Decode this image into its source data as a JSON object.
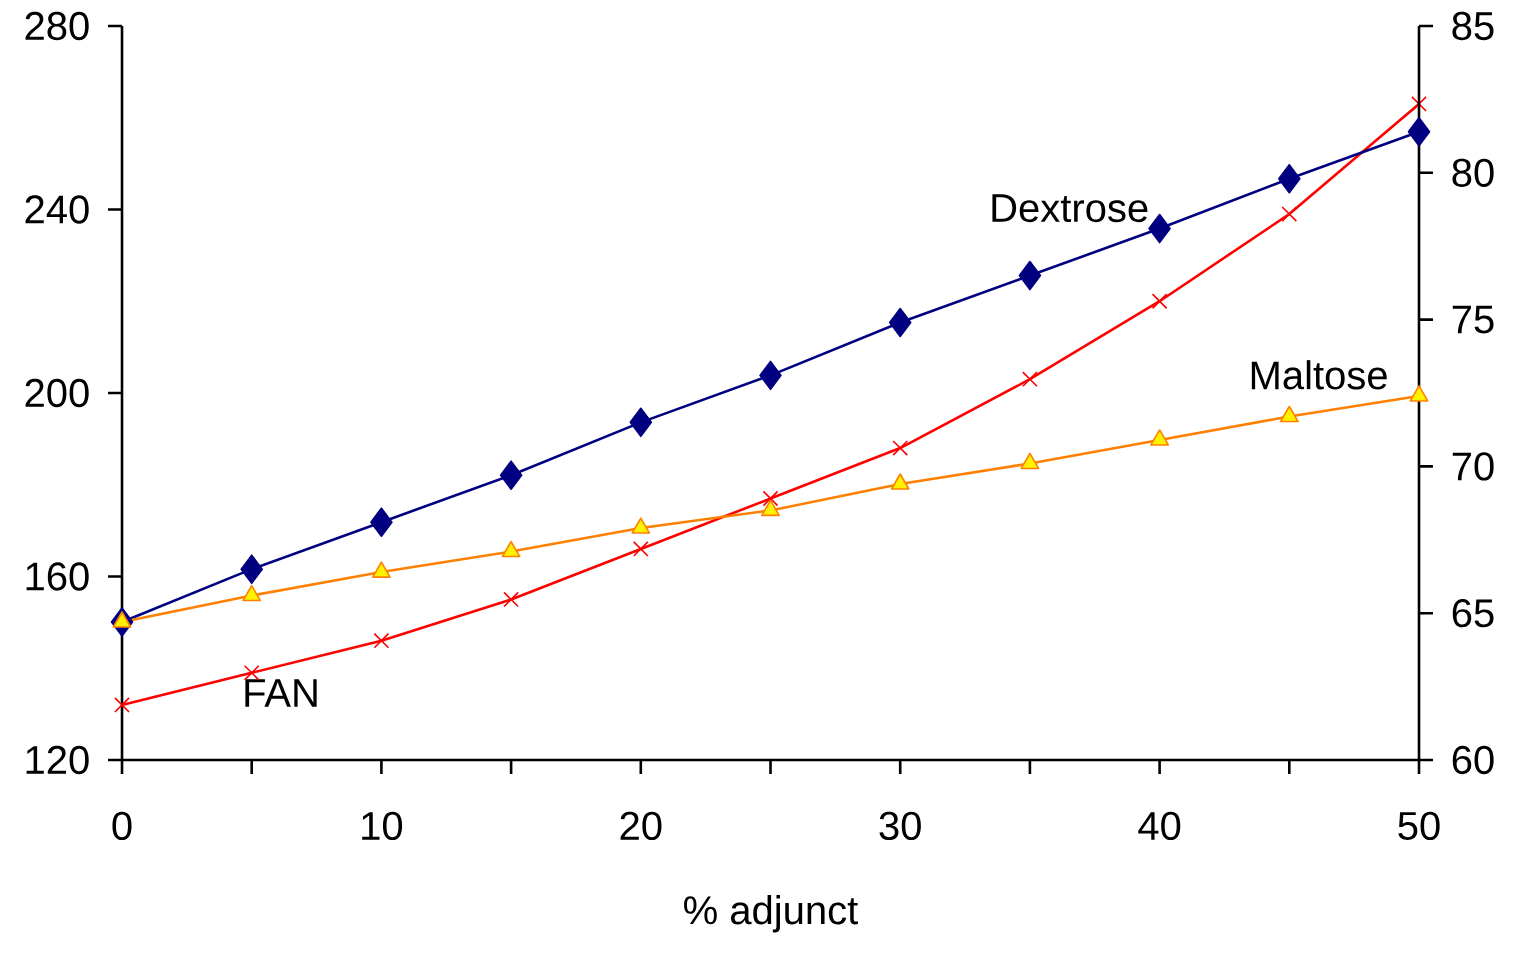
{
  "chart_data": {
    "type": "line",
    "xlabel": "% adjunct",
    "x": [
      0,
      5,
      10,
      15,
      20,
      25,
      30,
      35,
      40,
      45,
      50
    ],
    "xlim": [
      0,
      50
    ],
    "xticks": [
      0,
      {
        "value": 5,
        "label": null
      },
      10,
      {
        "value": 15,
        "label": null
      },
      20,
      {
        "value": 25,
        "label": null
      },
      30,
      {
        "value": 35,
        "label": null
      },
      40,
      {
        "value": 45,
        "label": null
      },
      50
    ],
    "ylim": [
      120,
      280
    ],
    "yticks": [
      120,
      160,
      200,
      240,
      280
    ],
    "y2lim": [
      60,
      85
    ],
    "y2ticks": [
      60,
      65,
      70,
      75,
      80,
      85
    ],
    "grid": false,
    "line_style": "solid",
    "series": [
      {
        "name": "Dextrose",
        "color": "#000080",
        "marker": "diamond",
        "axis": "y2",
        "values": [
          64.7,
          66.5,
          68.1,
          69.7,
          71.5,
          73.1,
          74.9,
          76.5,
          78.1,
          79.8,
          81.4
        ]
      },
      {
        "name": "Maltose",
        "color": "#ff8000",
        "marker": "triangle",
        "axis": "y2",
        "values": [
          64.7,
          65.6,
          66.4,
          67.1,
          67.9,
          68.5,
          69.4,
          70.1,
          70.9,
          71.7,
          72.4
        ]
      },
      {
        "name": "FAN",
        "color": "#ff0000",
        "marker": "cross",
        "values": [
          132,
          139,
          146,
          155,
          166,
          177,
          188,
          203,
          220,
          239,
          263
        ]
      }
    ]
  }
}
